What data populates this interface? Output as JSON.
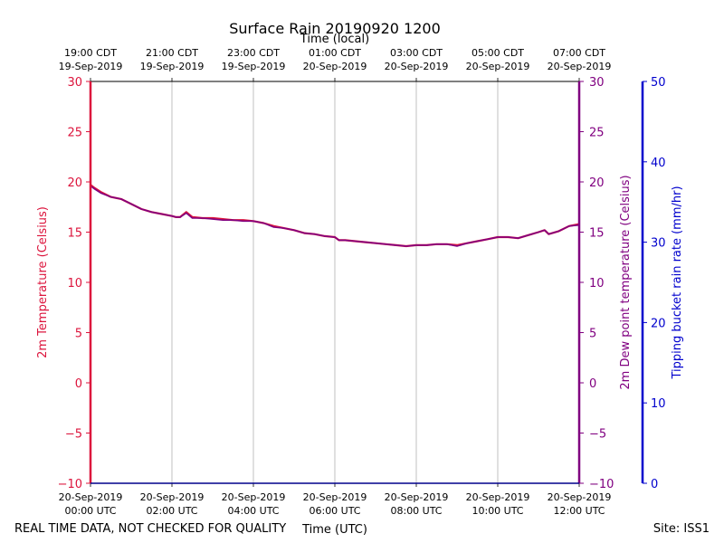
{
  "chart_data": {
    "type": "line",
    "title": "Surface Rain 20190920 1200",
    "top_axis_label": "Time (local)",
    "xlabel": "Time (UTC)",
    "x_ticks_utc": [
      {
        "line1": "20-Sep-2019",
        "line2": "00:00 UTC"
      },
      {
        "line1": "20-Sep-2019",
        "line2": "02:00 UTC"
      },
      {
        "line1": "20-Sep-2019",
        "line2": "04:00 UTC"
      },
      {
        "line1": "20-Sep-2019",
        "line2": "06:00 UTC"
      },
      {
        "line1": "20-Sep-2019",
        "line2": "08:00 UTC"
      },
      {
        "line1": "20-Sep-2019",
        "line2": "10:00 UTC"
      },
      {
        "line1": "20-Sep-2019",
        "line2": "12:00 UTC"
      }
    ],
    "x_ticks_local": [
      {
        "line1": "19:00 CDT",
        "line2": "19-Sep-2019"
      },
      {
        "line1": "21:00 CDT",
        "line2": "19-Sep-2019"
      },
      {
        "line1": "23:00 CDT",
        "line2": "19-Sep-2019"
      },
      {
        "line1": "01:00 CDT",
        "line2": "20-Sep-2019"
      },
      {
        "line1": "03:00 CDT",
        "line2": "20-Sep-2019"
      },
      {
        "line1": "05:00 CDT",
        "line2": "20-Sep-2019"
      },
      {
        "line1": "07:00 CDT",
        "line2": "20-Sep-2019"
      }
    ],
    "xlim_hours_utc": [
      0,
      12
    ],
    "grid": "vertical",
    "y_left": {
      "label": "2m Temperature (Celsius)",
      "color": "#dc143c",
      "ylim": [
        -10,
        30
      ],
      "ticks": [
        "−10",
        "−5",
        "0",
        "5",
        "10",
        "15",
        "20",
        "25",
        "30"
      ]
    },
    "y_right_inner": {
      "label": "2m Dew point temperature (Celsius)",
      "color": "#800080",
      "ylim": [
        -10,
        30
      ],
      "ticks": [
        "−10",
        "−5",
        "0",
        "5",
        "10",
        "15",
        "20",
        "25",
        "30"
      ]
    },
    "y_right_outer": {
      "label": "Tipping bucket rain rate (mm/hr)",
      "color": "#0000cd",
      "ylim": [
        0,
        50
      ],
      "ticks": [
        "0",
        "10",
        "20",
        "30",
        "40",
        "50"
      ]
    },
    "series": [
      {
        "color": "#dc143c",
        "axis": "left",
        "x": [
          0,
          0.1,
          0.25,
          0.5,
          0.75,
          1.0,
          1.25,
          1.5,
          1.75,
          2.0,
          2.1,
          2.2,
          2.35,
          2.5,
          2.75,
          3.0,
          3.25,
          3.5,
          3.75,
          4.0,
          4.25,
          4.5,
          4.75,
          5.0,
          5.25,
          5.5,
          5.75,
          6.0,
          6.1,
          6.25,
          6.5,
          6.75,
          7.0,
          7.25,
          7.5,
          7.75,
          8.0,
          8.25,
          8.5,
          8.75,
          9.0,
          9.25,
          9.5,
          9.75,
          10.0,
          10.25,
          10.5,
          10.75,
          11.0,
          11.15,
          11.25,
          11.5,
          11.75,
          12.0
        ],
        "y": [
          19.7,
          19.4,
          19.0,
          18.5,
          18.3,
          17.8,
          17.3,
          17.0,
          16.8,
          16.6,
          16.5,
          16.5,
          17.0,
          16.5,
          16.4,
          16.4,
          16.3,
          16.2,
          16.2,
          16.1,
          15.9,
          15.6,
          15.4,
          15.2,
          14.9,
          14.8,
          14.6,
          14.5,
          14.2,
          14.2,
          14.1,
          14.0,
          13.9,
          13.8,
          13.7,
          13.6,
          13.7,
          13.7,
          13.8,
          13.8,
          13.7,
          13.9,
          14.1,
          14.3,
          14.5,
          14.5,
          14.4,
          14.7,
          15.0,
          15.2,
          14.8,
          15.1,
          15.6,
          15.8
        ]
      },
      {
        "color": "#800080",
        "axis": "right_inner",
        "x": [
          0,
          0.1,
          0.25,
          0.5,
          0.75,
          1.0,
          1.25,
          1.5,
          1.75,
          2.0,
          2.1,
          2.2,
          2.35,
          2.5,
          2.75,
          3.0,
          3.25,
          3.5,
          3.75,
          4.0,
          4.25,
          4.5,
          4.75,
          5.0,
          5.25,
          5.5,
          5.75,
          6.0,
          6.1,
          6.25,
          6.5,
          6.75,
          7.0,
          7.25,
          7.5,
          7.75,
          8.0,
          8.25,
          8.5,
          8.75,
          9.0,
          9.25,
          9.5,
          9.75,
          10.0,
          10.25,
          10.5,
          10.75,
          11.0,
          11.15,
          11.25,
          11.5,
          11.75,
          12.0
        ],
        "y": [
          19.6,
          19.3,
          18.9,
          18.5,
          18.3,
          17.8,
          17.3,
          17.0,
          16.8,
          16.6,
          16.5,
          16.5,
          16.9,
          16.4,
          16.4,
          16.3,
          16.2,
          16.2,
          16.1,
          16.1,
          15.9,
          15.5,
          15.4,
          15.2,
          14.9,
          14.8,
          14.6,
          14.5,
          14.2,
          14.2,
          14.1,
          14.0,
          13.9,
          13.8,
          13.7,
          13.6,
          13.7,
          13.7,
          13.8,
          13.8,
          13.6,
          13.9,
          14.1,
          14.3,
          14.5,
          14.5,
          14.4,
          14.7,
          15.0,
          15.2,
          14.8,
          15.1,
          15.6,
          15.7
        ]
      }
    ]
  },
  "footer": {
    "disclaimer": "REAL TIME DATA, NOT CHECKED FOR QUALITY",
    "site": "Site: ISS1"
  }
}
